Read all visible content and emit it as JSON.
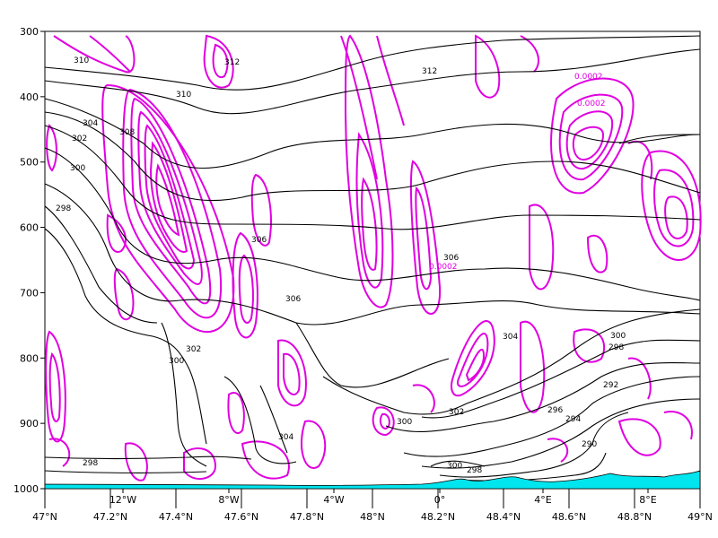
{
  "chart_data": {
    "type": "contour",
    "title": "",
    "y_axis": {
      "label": "",
      "ticks": [
        "300",
        "400",
        "500",
        "600",
        "700",
        "800",
        "900",
        "1000"
      ],
      "range": [
        300,
        1000
      ]
    },
    "x_axis_lat": {
      "ticks": [
        "47°N",
        "47.2°N",
        "47.4°N",
        "47.6°N",
        "47.8°N",
        "48°N",
        "48.2°N",
        "48.4°N",
        "48.6°N",
        "48.8°N",
        "49°N"
      ],
      "range": [
        47,
        49
      ]
    },
    "x_axis_lon": {
      "ticks": [
        "12°W",
        "8°W",
        "4°W",
        "0°",
        "4°E",
        "8°E"
      ]
    },
    "black_contour_labels": [
      "310",
      "310",
      "312",
      "312",
      "308",
      "304",
      "302",
      "300",
      "298",
      "306",
      "306",
      "304",
      "302",
      "300",
      "300",
      "298",
      "296",
      "294",
      "292",
      "290",
      "300",
      "298",
      "298",
      "302",
      "304",
      "300",
      "306"
    ],
    "magenta_contour_labels": [
      "0.0002",
      "0.0002",
      "0.0002"
    ],
    "colors": {
      "theta": "#000000",
      "magenta": "#e000e0",
      "terrain": "#00e5ee"
    }
  }
}
